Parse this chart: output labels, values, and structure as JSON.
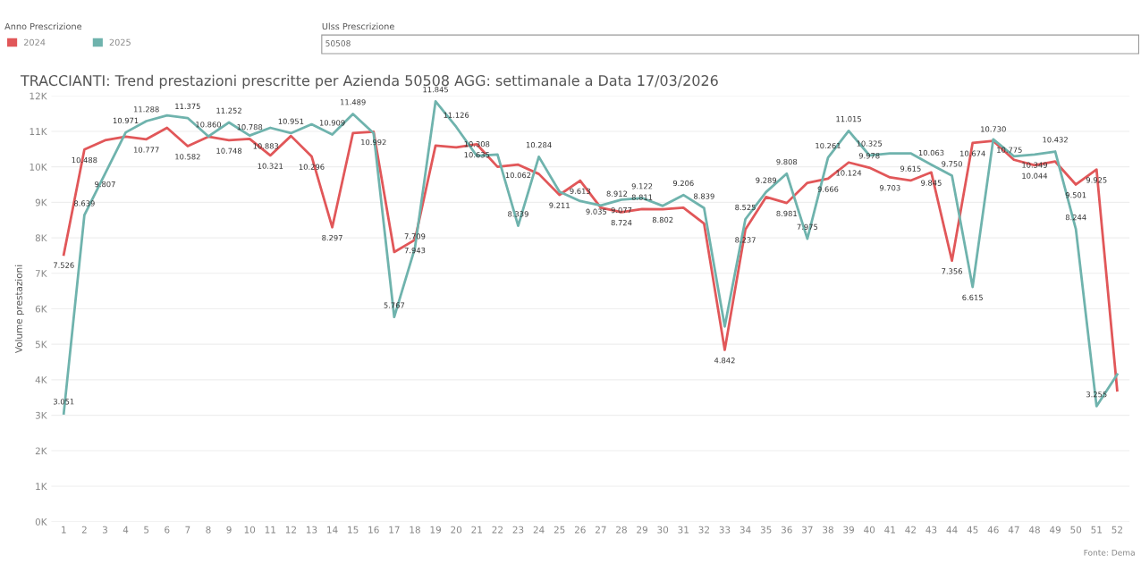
{
  "chart_data": {
    "type": "line",
    "title": "TRACCIANTI: Trend prestazioni prescritte per Azienda 50508 AGG: settimanale a Data 17/03/2026",
    "ylabel": "Volume prestazioni",
    "legend_title": "Anno Prescrizione",
    "annotations": [
      "Ulss Prescrizione",
      "50508",
      "Fonte: Dema"
    ],
    "categories": [
      "1",
      "2",
      "3",
      "4",
      "5",
      "6",
      "7",
      "8",
      "9",
      "10",
      "11",
      "12",
      "13",
      "14",
      "15",
      "16",
      "17",
      "18",
      "19",
      "20",
      "21",
      "22",
      "23",
      "24",
      "25",
      "26",
      "27",
      "28",
      "29",
      "30",
      "31",
      "32",
      "33",
      "34",
      "35",
      "36",
      "37",
      "38",
      "39",
      "40",
      "41",
      "42",
      "43",
      "44",
      "45",
      "46",
      "47",
      "48",
      "49",
      "50",
      "51",
      "52"
    ],
    "series": [
      {
        "name": "2024",
        "color": "#e15759",
        "values": [
          7526,
          10488,
          10750,
          10850,
          10777,
          11100,
          10582,
          10850,
          10748,
          10788,
          10321,
          10870,
          10296,
          8297,
          10950,
          10992,
          7600,
          7943,
          10600,
          10550,
          10635,
          10000,
          10062,
          9800,
          9211,
          9613,
          8850,
          8724,
          8811,
          8802,
          8850,
          8400,
          4842,
          8237,
          9150,
          8981,
          9550,
          9666,
          10124,
          9978,
          9703,
          9615,
          9845,
          7356,
          10674,
          10730,
          10200,
          10044,
          10150,
          9501,
          9925,
          3700
        ],
        "value_labels": [
          "7.526",
          "10.488",
          null,
          null,
          "10.777",
          null,
          "10.582",
          null,
          "10.748",
          "10.788",
          "10.321",
          null,
          "10.296",
          "8.297",
          null,
          "10.992",
          null,
          "7.943",
          null,
          null,
          "10.635",
          null,
          "10.062",
          null,
          "9.211",
          "9.613",
          null,
          "8.724",
          "8.811",
          "8.802",
          null,
          null,
          "4.842",
          "8.237",
          null,
          "8.981",
          null,
          "9.666",
          "10.124",
          "9.978",
          "9.703",
          "9.615",
          "9.845",
          "7.356",
          "10.674",
          "10.730",
          null,
          "10.044",
          null,
          "9.501",
          "9.925",
          null
        ]
      },
      {
        "name": "2025",
        "color": "#6fb3ad",
        "values": [
          3051,
          8639,
          9807,
          10971,
          11288,
          11450,
          11375,
          10860,
          11252,
          10883,
          11100,
          10951,
          11200,
          10909,
          11489,
          10950,
          5767,
          7709,
          11845,
          11126,
          10308,
          10350,
          8339,
          10284,
          9300,
          9035,
          8912,
          9077,
          9122,
          8900,
          9206,
          8839,
          5500,
          8525,
          9289,
          9808,
          7975,
          10261,
          11015,
          10325,
          10380,
          10380,
          10063,
          9750,
          6615,
          10775,
          10300,
          10349,
          10432,
          8244,
          3255,
          4150
        ],
        "value_labels": [
          "3.051",
          "8.639",
          "9.807",
          "10.971",
          "11.288",
          null,
          "11.375",
          "10.860",
          "11.252",
          "10.883",
          null,
          "10.951",
          null,
          "10.909",
          "11.489",
          null,
          "5.767",
          "7.709",
          "11.845",
          "11.126",
          "10.308",
          null,
          "8.339",
          "10.284",
          null,
          "9.035",
          "8.912",
          "9.077",
          "9.122",
          null,
          "9.206",
          "8.839",
          null,
          "8.525",
          "9.289",
          "9.808",
          "7.975",
          "10.261",
          "11.015",
          "10.325",
          null,
          null,
          "10.063",
          "9.750",
          "6.615",
          "10.775",
          null,
          "10.349",
          "10.432",
          "8.244",
          "3.255",
          null
        ]
      }
    ],
    "ylim": [
      0,
      12000
    ],
    "yticks": [
      {
        "value": 0,
        "label": "0K"
      },
      {
        "value": 1000,
        "label": "1K"
      },
      {
        "value": 2000,
        "label": "2K"
      },
      {
        "value": 3000,
        "label": "3K"
      },
      {
        "value": 4000,
        "label": "4K"
      },
      {
        "value": 5000,
        "label": "5K"
      },
      {
        "value": 6000,
        "label": "6K"
      },
      {
        "value": 7000,
        "label": "7K"
      },
      {
        "value": 8000,
        "label": "8K"
      },
      {
        "value": 9000,
        "label": "9K"
      },
      {
        "value": 10000,
        "label": "10K"
      },
      {
        "value": 11000,
        "label": "11K"
      },
      {
        "value": 12000,
        "label": "12K"
      }
    ],
    "grid": "y",
    "legend": "top left",
    "marker": "none",
    "line_style": "solid"
  }
}
